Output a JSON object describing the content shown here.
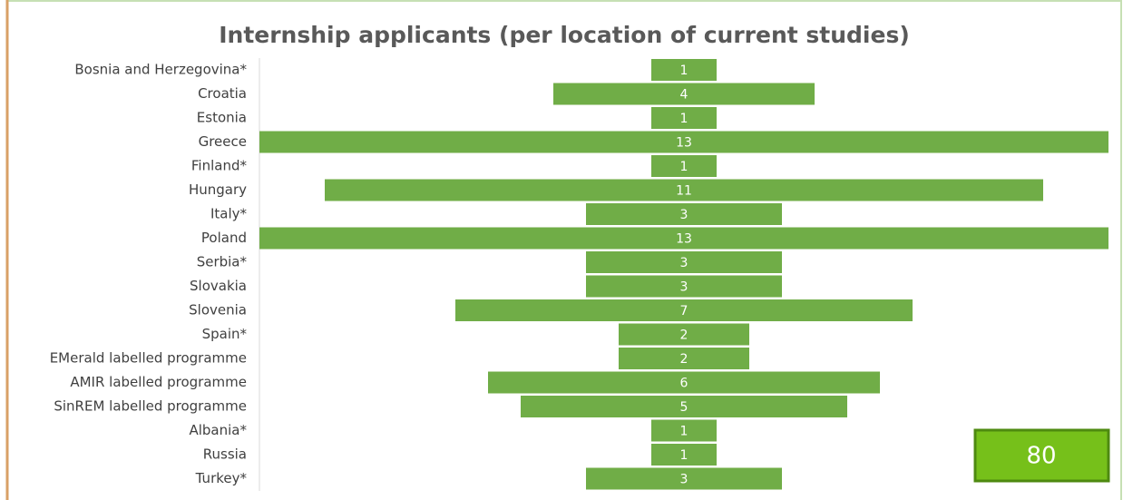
{
  "chart_data": {
    "type": "bar",
    "orientation": "centered",
    "title": "Internship applicants (per location of current studies)",
    "categories": [
      "Bosnia and Herzegovina*",
      "Croatia",
      "Estonia",
      "Greece",
      "Finland*",
      "Hungary",
      "Italy*",
      "Poland",
      "Serbia*",
      "Slovakia",
      "Slovenia",
      "Spain*",
      "EMerald labelled programme",
      "AMIR labelled programme",
      "SinREM labelled programme",
      "Albania*",
      "Russia",
      "Turkey*"
    ],
    "values": [
      1,
      4,
      1,
      13,
      1,
      11,
      3,
      13,
      3,
      3,
      7,
      2,
      2,
      6,
      5,
      1,
      1,
      3
    ],
    "color": "#70ad47",
    "total": 80
  }
}
